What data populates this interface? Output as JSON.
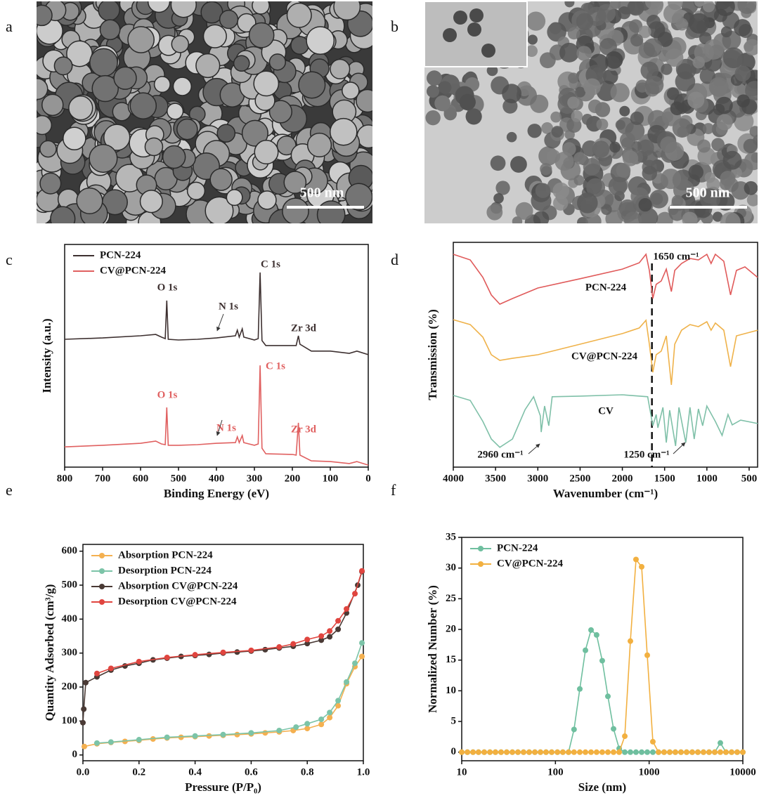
{
  "images": [
    {
      "panel": "a",
      "scale_bar": "500 nm"
    },
    {
      "panel": "b",
      "scale_bar": "500 nm"
    }
  ],
  "chart_data": [
    {
      "panel": "c",
      "type": "line",
      "xlabel": "Binding Energy (eV)",
      "ylabel": "Intensity (a.u.)",
      "xlim": [
        800,
        0
      ],
      "xticks": [
        800,
        700,
        600,
        500,
        400,
        300,
        200,
        100,
        0
      ],
      "ylim": [
        0,
        100
      ],
      "legend": "upper left",
      "x": [
        800,
        700,
        600,
        560,
        545,
        535,
        531,
        527,
        500,
        450,
        400,
        350,
        345,
        340,
        332,
        328,
        300,
        290,
        285,
        280,
        270,
        200,
        190,
        184,
        180,
        150,
        100,
        50,
        30,
        0
      ],
      "series": [
        {
          "name": "PCN-224",
          "color": "#3d3030",
          "values": [
            57.4,
            58.0,
            59.0,
            59.6,
            58.4,
            57.7,
            74.8,
            57.4,
            57.1,
            57.4,
            58.0,
            59.0,
            61.5,
            58.4,
            62.1,
            58.4,
            57.1,
            57.7,
            87.4,
            56.8,
            54.6,
            54.6,
            54.6,
            59.0,
            55.2,
            52.1,
            52.1,
            51.1,
            52.1,
            50.5
          ]
        },
        {
          "name": "CV@PCN-224",
          "color": "#e06060",
          "values": [
            9.1,
            9.8,
            10.7,
            11.7,
            10.4,
            10.1,
            26.8,
            9.8,
            9.8,
            10.1,
            10.7,
            11.0,
            13.6,
            11.0,
            14.2,
            11.0,
            9.8,
            10.4,
            45.7,
            8.5,
            6.0,
            5.7,
            5.4,
            19.9,
            5.4,
            2.8,
            2.5,
            1.6,
            2.5,
            0.9
          ]
        }
      ],
      "annotations": [
        {
          "text": "O 1s",
          "color": "#3d3030"
        },
        {
          "text": "N 1s",
          "color": "#3d3030"
        },
        {
          "text": "C 1s",
          "color": "#3d3030"
        },
        {
          "text": "Zr 3d",
          "color": "#3d3030"
        },
        {
          "text": "O 1s",
          "color": "#e06060"
        },
        {
          "text": "N 1s",
          "color": "#e06060"
        },
        {
          "text": "C 1s",
          "color": "#e06060"
        },
        {
          "text": "Zr 3d",
          "color": "#e06060"
        }
      ]
    },
    {
      "panel": "d",
      "type": "line",
      "xlabel": "Wavenumber (cm⁻¹)",
      "ylabel": "Transmission (%)",
      "xlim": [
        4000,
        400
      ],
      "xticks": [
        4000,
        3500,
        3000,
        2500,
        2000,
        1500,
        1000,
        500
      ],
      "ylim": [
        0,
        100
      ],
      "legend": "inline",
      "vline": 1650,
      "series": [
        {
          "name": "PCN-224",
          "color": "#e05a5a",
          "x": [
            4000,
            3800,
            3650,
            3550,
            3450,
            3300,
            3000,
            2500,
            2000,
            1800,
            1720,
            1680,
            1640,
            1600,
            1540,
            1480,
            1420,
            1380,
            1300,
            1200,
            1100,
            1000,
            950,
            900,
            800,
            720,
            650,
            550,
            400
          ],
          "values": [
            94.7,
            92.2,
            84.4,
            76.6,
            72.5,
            75.0,
            79.7,
            83.8,
            88.1,
            90.9,
            94.7,
            87.5,
            75.0,
            81.3,
            82.8,
            88.1,
            78.1,
            87.5,
            90.6,
            92.8,
            92.2,
            94.7,
            90.6,
            94.7,
            91.6,
            76.6,
            87.5,
            89.1,
            84.4
          ]
        },
        {
          "name": "CV@PCN-224",
          "color": "#efb24a",
          "x": [
            4000,
            3800,
            3650,
            3550,
            3450,
            3300,
            3000,
            2500,
            2000,
            1800,
            1720,
            1680,
            1640,
            1600,
            1540,
            1480,
            1420,
            1380,
            1300,
            1200,
            1100,
            1000,
            950,
            900,
            800,
            720,
            650,
            550,
            400
          ],
          "values": [
            65.6,
            63.4,
            57.8,
            50.0,
            47.5,
            48.4,
            50.0,
            54.7,
            59.4,
            61.9,
            65.3,
            54.7,
            42.2,
            50.0,
            51.6,
            58.4,
            36.6,
            54.7,
            60.9,
            63.4,
            62.5,
            64.7,
            60.9,
            64.1,
            60.9,
            44.7,
            58.4,
            59.4,
            60.9
          ]
        },
        {
          "name": "CV",
          "color": "#7fc0a8",
          "x": [
            4000,
            3800,
            3650,
            3550,
            3450,
            3300,
            3150,
            3050,
            2970,
            2960,
            2920,
            2870,
            2830,
            2500,
            2000,
            1700,
            1640,
            1600,
            1580,
            1520,
            1480,
            1440,
            1370,
            1330,
            1250,
            1200,
            1150,
            1100,
            1050,
            1000,
            900,
            820,
            750,
            700,
            600,
            400
          ],
          "values": [
            31.9,
            29.7,
            20.3,
            12.5,
            8.8,
            12.5,
            25.6,
            31.3,
            22.8,
            15.6,
            27.2,
            18.4,
            31.3,
            31.6,
            32.2,
            31.3,
            18.4,
            23.4,
            17.5,
            26.6,
            10.9,
            25.3,
            9.4,
            26.6,
            10.9,
            26.6,
            12.5,
            25.9,
            18.4,
            27.2,
            20.3,
            14.1,
            23.4,
            18.8,
            20.9,
            19.4
          ]
        }
      ],
      "annotations": [
        {
          "text": "1650 cm⁻¹",
          "color": "#111111"
        },
        {
          "text": "2960 cm⁻¹",
          "color": "#111111"
        },
        {
          "text": "1250 cm⁻¹",
          "color": "#111111"
        }
      ]
    },
    {
      "panel": "e",
      "type": "line",
      "markers": true,
      "xlabel": "Pressure (P/P₀)",
      "ylabel": "Quantity Adsorbed (cm³/g)",
      "xlim": [
        0,
        1
      ],
      "xticks": [
        {
          "value": 0,
          "label": "0.0"
        },
        0.2,
        0.4,
        0.6,
        0.8,
        {
          "value": 1,
          "label": "1.0"
        }
      ],
      "ylim": [
        -17,
        620
      ],
      "yticks": [
        0,
        100,
        200,
        300,
        400,
        500,
        600
      ],
      "legend": "upper left",
      "series": [
        {
          "name": "Absorption PCN-224",
          "color": "#f4b050",
          "x": [
            0.005,
            0.05,
            0.1,
            0.15,
            0.2,
            0.25,
            0.3,
            0.35,
            0.4,
            0.45,
            0.5,
            0.55,
            0.6,
            0.65,
            0.7,
            0.75,
            0.8,
            0.85,
            0.88,
            0.91,
            0.94,
            0.97,
            0.995
          ],
          "values": [
            25,
            33,
            37,
            40,
            43,
            47,
            50,
            52,
            54,
            56,
            58,
            60,
            62,
            65,
            68,
            72,
            78,
            90,
            110,
            145,
            210,
            260,
            290
          ]
        },
        {
          "name": "Desorption PCN-224",
          "color": "#7cc4a8",
          "x": [
            0.995,
            0.97,
            0.94,
            0.91,
            0.88,
            0.85,
            0.8,
            0.76,
            0.7,
            0.6,
            0.5,
            0.4,
            0.3,
            0.2,
            0.1,
            0.05
          ],
          "values": [
            330,
            270,
            215,
            160,
            125,
            105,
            92,
            82,
            72,
            65,
            60,
            56,
            52,
            45,
            38,
            35
          ]
        },
        {
          "name": "Absorption CV@PCN-224",
          "color": "#4a3a35",
          "x": [
            0,
            0.003,
            0.01,
            0.05,
            0.1,
            0.15,
            0.2,
            0.25,
            0.3,
            0.35,
            0.4,
            0.45,
            0.5,
            0.55,
            0.6,
            0.65,
            0.7,
            0.75,
            0.8,
            0.85,
            0.88,
            0.91,
            0.94,
            0.98,
            0.995
          ],
          "values": [
            95,
            135,
            213,
            230,
            250,
            262,
            270,
            280,
            285,
            290,
            293,
            296,
            300,
            303,
            306,
            310,
            315,
            320,
            328,
            338,
            348,
            370,
            418,
            500,
            540
          ]
        },
        {
          "name": "Desorption CV@PCN-224",
          "color": "#e0453f",
          "x": [
            0.995,
            0.97,
            0.94,
            0.91,
            0.88,
            0.85,
            0.8,
            0.75,
            0.7,
            0.6,
            0.5,
            0.4,
            0.3,
            0.2,
            0.1,
            0.05
          ],
          "values": [
            542,
            475,
            430,
            395,
            365,
            350,
            340,
            327,
            318,
            308,
            302,
            295,
            287,
            275,
            255,
            240
          ]
        }
      ]
    },
    {
      "panel": "f",
      "type": "line",
      "markers": true,
      "log_x": true,
      "xlabel": "Size (nm)",
      "ylabel": "Normalized Number (%)",
      "xlim": [
        10,
        10000
      ],
      "xticks": [
        10,
        100,
        1000,
        10000
      ],
      "ylim": [
        -1.4,
        35
      ],
      "yticks": [
        0,
        5,
        10,
        15,
        20,
        25,
        30,
        35
      ],
      "legend": "upper left",
      "x": [
        10,
        11.5,
        13.2,
        15.1,
        17.4,
        20.0,
        22.9,
        26.3,
        30.2,
        34.7,
        39.8,
        45.7,
        52.5,
        60.3,
        69.2,
        79.4,
        91.2,
        105,
        120,
        138,
        158,
        182,
        209,
        240,
        275,
        316,
        363,
        417,
        479,
        550,
        631,
        724,
        832,
        955,
        1096,
        1259,
        1445,
        1660,
        1905,
        2188,
        2512,
        2884,
        3311,
        3802,
        4365,
        5012,
        5754,
        6607,
        7586,
        8710,
        10000
      ],
      "series": [
        {
          "name": "PCN-224",
          "color": "#6fbf9f",
          "values": [
            0,
            0,
            0,
            0,
            0,
            0,
            0,
            0,
            0,
            0,
            0,
            0,
            0,
            0,
            0,
            0,
            0,
            0,
            0,
            0,
            3.7,
            10.3,
            16.6,
            19.9,
            19.1,
            14.9,
            9.1,
            3.8,
            0.6,
            0,
            0,
            0,
            0,
            0,
            0,
            0,
            0,
            0,
            0,
            0,
            0,
            0,
            0,
            0,
            0,
            0,
            1.5,
            0,
            0,
            0,
            0
          ]
        },
        {
          "name": "CV@PCN-224",
          "color": "#f2b040",
          "values": [
            0,
            0,
            0,
            0,
            0,
            0,
            0,
            0,
            0,
            0,
            0,
            0,
            0,
            0,
            0,
            0,
            0,
            0,
            0,
            0,
            0,
            0,
            0,
            0,
            0,
            0,
            0,
            0,
            0,
            2.6,
            18.1,
            31.4,
            30.2,
            15.8,
            1.7,
            0,
            0,
            0,
            0,
            0,
            0,
            0,
            0,
            0,
            0,
            0,
            0,
            0,
            0,
            0,
            0
          ]
        }
      ]
    }
  ]
}
